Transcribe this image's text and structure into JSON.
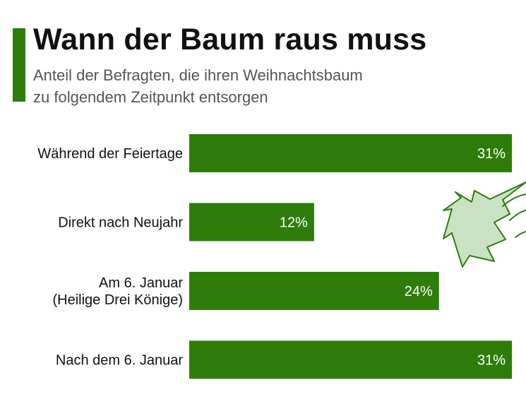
{
  "colors": {
    "accent": "#2e7d0a",
    "bar": "#2e7d0a",
    "bar_label": "#ffffff",
    "category_label": "#111111",
    "tree_fill": "#c9e2c4",
    "tree_stroke": "#2e7d0a"
  },
  "header": {
    "title": "Wann der Baum raus muss",
    "subtitle_line1": "Anteil der Befragten, die ihren Weihnachtsbaum",
    "subtitle_line2": "zu folgendem Zeitpunkt entsorgen"
  },
  "decoration": {
    "icon": "christmas-tree-icon"
  },
  "chart_data": {
    "type": "bar",
    "orientation": "horizontal",
    "title": "Wann der Baum raus muss",
    "subtitle": "Anteil der Befragten, die ihren Weihnachtsbaum zu folgendem Zeitpunkt entsorgen",
    "categories": [
      [
        "Während der Feiertage"
      ],
      [
        "Direkt nach Neujahr"
      ],
      [
        "Am 6. Januar",
        "(Heilige Drei Könige)"
      ],
      [
        "Nach dem 6. Januar"
      ]
    ],
    "values": [
      31,
      12,
      24,
      31
    ],
    "value_labels": [
      "31%",
      "12%",
      "24%",
      "31%"
    ],
    "unit": "%",
    "xlim": [
      0,
      31
    ],
    "grid": false,
    "xlabel": "",
    "ylabel": ""
  }
}
